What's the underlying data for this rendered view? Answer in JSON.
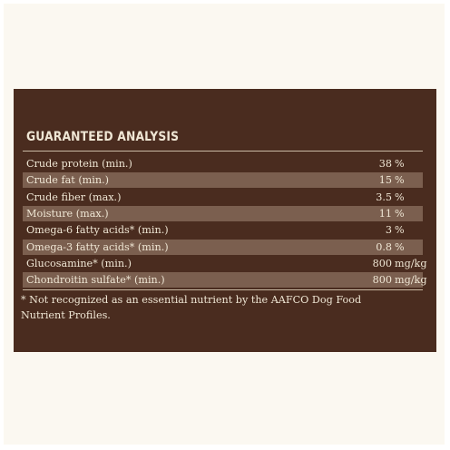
{
  "title": "GUARANTEED ANALYSIS",
  "table": {
    "rows": [
      [
        "Crude protein (min.)",
        "38",
        "%"
      ],
      [
        "Crude fat (min.)",
        "15",
        "%"
      ],
      [
        "Crude fiber (max.)",
        "3.5",
        "%"
      ],
      [
        "Moisture (max.)",
        "11",
        "%"
      ],
      [
        "Omega-6 fatty acids* (min.)",
        "3",
        "%"
      ],
      [
        "Omega-3 fatty acids* (min.)",
        "0.8",
        "%"
      ],
      [
        "Glucosamine* (min.)",
        "800",
        "mg/kg"
      ],
      [
        "Chondroitin sulfate* (min.)",
        "800",
        "mg/kg"
      ]
    ]
  },
  "footnote": [
    "* Not recognized as an essential nutrient by the AAFCO Dog Food",
    "Nutrient Profiles."
  ]
}
